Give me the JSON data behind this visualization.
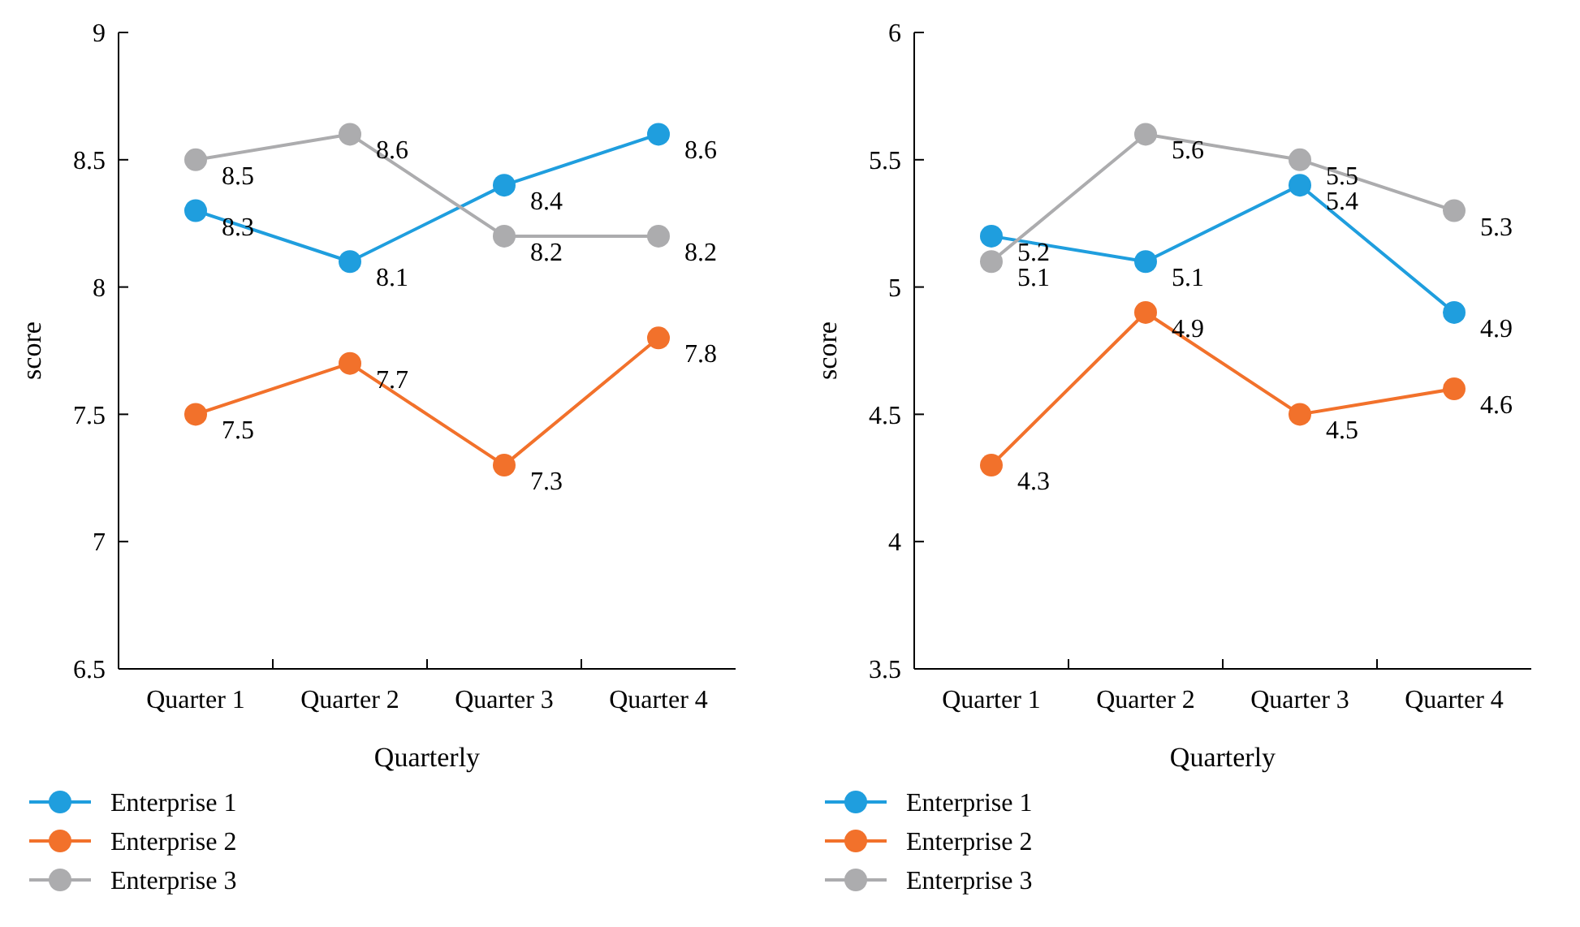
{
  "chart_data": [
    {
      "type": "line",
      "xlabel": "Quarterly",
      "ylabel": "score",
      "categories": [
        "Quarter 1",
        "Quarter 2",
        "Quarter 3",
        "Quarter 4"
      ],
      "ylim": [
        6.5,
        9
      ],
      "yticks": [
        6.5,
        7,
        7.5,
        8,
        8.5,
        9
      ],
      "marker": "circle",
      "data_labels": true,
      "legend": "bottom",
      "grid": false,
      "series": [
        {
          "name": "Enterprise 1",
          "color": "#1f9ede",
          "values": [
            8.3,
            8.1,
            8.4,
            8.6
          ]
        },
        {
          "name": "Enterprise 2",
          "color": "#f2712b",
          "values": [
            7.5,
            7.7,
            7.3,
            7.8
          ]
        },
        {
          "name": "Enterprise 3",
          "color": "#acacae",
          "values": [
            8.5,
            8.6,
            8.2,
            8.2
          ]
        }
      ]
    },
    {
      "type": "line",
      "xlabel": "Quarterly",
      "ylabel": "score",
      "categories": [
        "Quarter 1",
        "Quarter 2",
        "Quarter 3",
        "Quarter 4"
      ],
      "ylim": [
        3.5,
        6
      ],
      "yticks": [
        3.5,
        4,
        4.5,
        5,
        5.5,
        6
      ],
      "marker": "circle",
      "data_labels": true,
      "legend": "bottom",
      "grid": false,
      "series": [
        {
          "name": "Enterprise 1",
          "color": "#1f9ede",
          "values": [
            5.2,
            5.1,
            5.4,
            4.9
          ]
        },
        {
          "name": "Enterprise 2",
          "color": "#f2712b",
          "values": [
            4.3,
            4.9,
            4.5,
            4.6
          ]
        },
        {
          "name": "Enterprise 3",
          "color": "#acacae",
          "values": [
            5.1,
            5.6,
            5.5,
            5.3
          ]
        }
      ]
    }
  ]
}
